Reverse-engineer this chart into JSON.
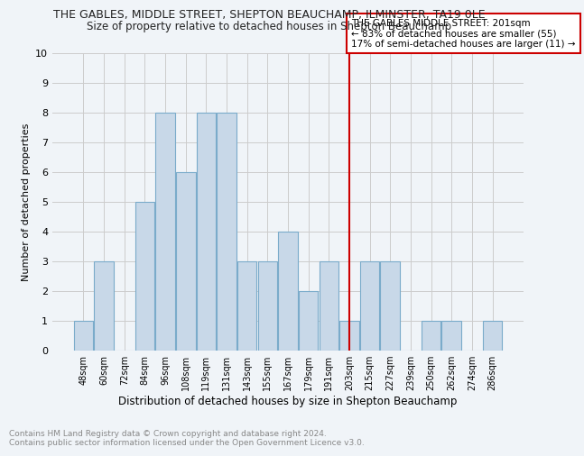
{
  "title": "THE GABLES, MIDDLE STREET, SHEPTON BEAUCHAMP, ILMINSTER, TA19 0LE",
  "subtitle": "Size of property relative to detached houses in Shepton Beauchamp",
  "xlabel": "Distribution of detached houses by size in Shepton Beauchamp",
  "ylabel": "Number of detached properties",
  "footnote": "Contains HM Land Registry data © Crown copyright and database right 2024.\nContains public sector information licensed under the Open Government Licence v3.0.",
  "categories": [
    "48sqm",
    "60sqm",
    "72sqm",
    "84sqm",
    "96sqm",
    "108sqm",
    "119sqm",
    "131sqm",
    "143sqm",
    "155sqm",
    "167sqm",
    "179sqm",
    "191sqm",
    "203sqm",
    "215sqm",
    "227sqm",
    "239sqm",
    "250sqm",
    "262sqm",
    "274sqm",
    "286sqm"
  ],
  "values": [
    1,
    3,
    0,
    5,
    8,
    6,
    8,
    8,
    3,
    3,
    4,
    2,
    3,
    1,
    3,
    3,
    0,
    1,
    1,
    0,
    1
  ],
  "bar_color": "#c8d8e8",
  "bar_edge_color": "#7aabca",
  "vline_x": 13,
  "vline_color": "#cc0000",
  "annotation_text": "THE GABLES MIDDLE STREET: 201sqm\n← 83% of detached houses are smaller (55)\n17% of semi-detached houses are larger (11) →",
  "annotation_box_color": "#ffffff",
  "annotation_box_edge": "#cc0000",
  "ylim": [
    0,
    10
  ],
  "yticks": [
    0,
    1,
    2,
    3,
    4,
    5,
    6,
    7,
    8,
    9,
    10
  ],
  "grid_color": "#cccccc",
  "background_color": "#f0f4f8",
  "title_fontsize": 9,
  "subtitle_fontsize": 8.5
}
